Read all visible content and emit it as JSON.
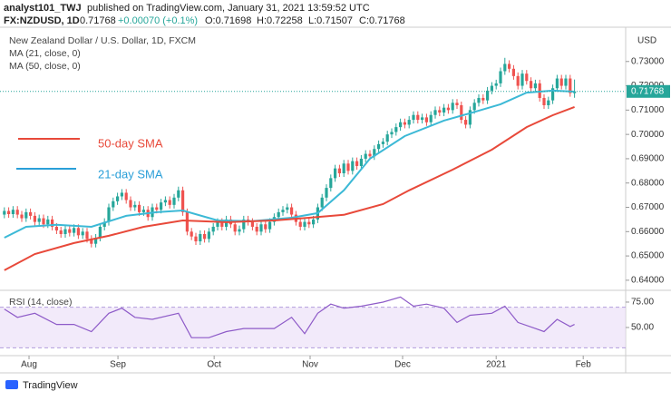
{
  "header": {
    "publisher": "analyst101_TWJ",
    "published": "published on TradingView.com, January 31, 2021 13:59:52 UTC",
    "symbol": "FX:NZDUSD, 1D",
    "quote": "0.71768",
    "change": "+0.00070 (+0.1%)",
    "ohlc": [
      "O:0.71698",
      "H:0.72258",
      "L:0.71507",
      "C:0.71768"
    ]
  },
  "footer": {
    "brand": "TradingView"
  },
  "chart_data": {
    "type": "candlestick",
    "title": "New Zealand Dollar / U.S. Dollar, 1D, FXCM",
    "currency": "USD",
    "up_color": "#26a69a",
    "down_color": "#ef5350",
    "candles": [
      [
        0.667,
        0.67,
        0.6655,
        0.6685
      ],
      [
        0.6685,
        0.67,
        0.6657,
        0.6672
      ],
      [
        0.6672,
        0.6705,
        0.6657,
        0.669
      ],
      [
        0.669,
        0.6705,
        0.6655,
        0.667
      ],
      [
        0.667,
        0.6685,
        0.664,
        0.6655
      ],
      [
        0.6655,
        0.6695,
        0.664,
        0.668
      ],
      [
        0.668,
        0.6695,
        0.665,
        0.6665
      ],
      [
        0.6665,
        0.668,
        0.6625,
        0.664
      ],
      [
        0.664,
        0.667,
        0.6625,
        0.6655
      ],
      [
        0.6655,
        0.667,
        0.6615,
        0.663
      ],
      [
        0.663,
        0.6665,
        0.6615,
        0.665
      ],
      [
        0.665,
        0.6665,
        0.6605,
        0.662
      ],
      [
        0.662,
        0.6635,
        0.659,
        0.6605
      ],
      [
        0.6605,
        0.662,
        0.6575,
        0.659
      ],
      [
        0.659,
        0.6625,
        0.6575,
        0.661
      ],
      [
        0.661,
        0.6625,
        0.658,
        0.6595
      ],
      [
        0.6595,
        0.663,
        0.658,
        0.6615
      ],
      [
        0.6615,
        0.663,
        0.657,
        0.6585
      ],
      [
        0.6585,
        0.6615,
        0.657,
        0.66
      ],
      [
        0.66,
        0.6615,
        0.6555,
        0.657
      ],
      [
        0.657,
        0.6585,
        0.6535,
        0.655
      ],
      [
        0.655,
        0.659,
        0.6535,
        0.6575
      ],
      [
        0.6575,
        0.6635,
        0.656,
        0.662
      ],
      [
        0.662,
        0.6655,
        0.6605,
        0.664
      ],
      [
        0.664,
        0.6715,
        0.6625,
        0.67
      ],
      [
        0.67,
        0.674,
        0.6685,
        0.6725
      ],
      [
        0.6725,
        0.676,
        0.671,
        0.6745
      ],
      [
        0.6745,
        0.6775,
        0.673,
        0.676
      ],
      [
        0.676,
        0.6775,
        0.6715,
        0.673
      ],
      [
        0.673,
        0.6745,
        0.6685,
        0.67
      ],
      [
        0.67,
        0.6725,
        0.6685,
        0.671
      ],
      [
        0.671,
        0.6725,
        0.6665,
        0.668
      ],
      [
        0.668,
        0.6705,
        0.6665,
        0.669
      ],
      [
        0.669,
        0.6705,
        0.6645,
        0.666
      ],
      [
        0.666,
        0.6715,
        0.6645,
        0.67
      ],
      [
        0.67,
        0.6715,
        0.6675,
        0.669
      ],
      [
        0.669,
        0.6735,
        0.6675,
        0.672
      ],
      [
        0.672,
        0.6745,
        0.6705,
        0.673
      ],
      [
        0.673,
        0.6745,
        0.6695,
        0.671
      ],
      [
        0.671,
        0.6755,
        0.6695,
        0.674
      ],
      [
        0.674,
        0.6785,
        0.6725,
        0.677
      ],
      [
        0.677,
        0.6785,
        0.6665,
        0.668
      ],
      [
        0.668,
        0.6695,
        0.6585,
        0.66
      ],
      [
        0.66,
        0.6615,
        0.6565,
        0.658
      ],
      [
        0.658,
        0.6595,
        0.6545,
        0.656
      ],
      [
        0.656,
        0.6605,
        0.6545,
        0.659
      ],
      [
        0.659,
        0.6605,
        0.6555,
        0.657
      ],
      [
        0.657,
        0.6615,
        0.6555,
        0.66
      ],
      [
        0.66,
        0.6635,
        0.6585,
        0.662
      ],
      [
        0.662,
        0.6655,
        0.6605,
        0.664
      ],
      [
        0.664,
        0.6655,
        0.6605,
        0.662
      ],
      [
        0.662,
        0.6665,
        0.6605,
        0.665
      ],
      [
        0.665,
        0.6665,
        0.6615,
        0.663
      ],
      [
        0.663,
        0.6645,
        0.6585,
        0.66
      ],
      [
        0.66,
        0.6625,
        0.6585,
        0.661
      ],
      [
        0.661,
        0.6665,
        0.6595,
        0.665
      ],
      [
        0.665,
        0.6665,
        0.6625,
        0.664
      ],
      [
        0.664,
        0.6655,
        0.6605,
        0.662
      ],
      [
        0.662,
        0.6635,
        0.6585,
        0.66
      ],
      [
        0.66,
        0.6645,
        0.6585,
        0.663
      ],
      [
        0.663,
        0.6645,
        0.6595,
        0.661
      ],
      [
        0.661,
        0.6655,
        0.6595,
        0.664
      ],
      [
        0.664,
        0.6675,
        0.6625,
        0.666
      ],
      [
        0.666,
        0.6695,
        0.6645,
        0.668
      ],
      [
        0.668,
        0.6705,
        0.6665,
        0.669
      ],
      [
        0.669,
        0.6715,
        0.6675,
        0.67
      ],
      [
        0.67,
        0.6715,
        0.6655,
        0.667
      ],
      [
        0.667,
        0.6685,
        0.6625,
        0.664
      ],
      [
        0.664,
        0.6655,
        0.6605,
        0.662
      ],
      [
        0.662,
        0.6655,
        0.6605,
        0.664
      ],
      [
        0.664,
        0.6655,
        0.6615,
        0.663
      ],
      [
        0.663,
        0.6665,
        0.6615,
        0.665
      ],
      [
        0.665,
        0.6715,
        0.6635,
        0.67
      ],
      [
        0.67,
        0.6755,
        0.6685,
        0.674
      ],
      [
        0.674,
        0.6795,
        0.6725,
        0.678
      ],
      [
        0.678,
        0.6835,
        0.6765,
        0.682
      ],
      [
        0.682,
        0.6875,
        0.6805,
        0.686
      ],
      [
        0.686,
        0.6875,
        0.6825,
        0.684
      ],
      [
        0.684,
        0.6895,
        0.6825,
        0.688
      ],
      [
        0.688,
        0.6895,
        0.6835,
        0.685
      ],
      [
        0.685,
        0.6905,
        0.6835,
        0.689
      ],
      [
        0.689,
        0.6905,
        0.6855,
        0.687
      ],
      [
        0.687,
        0.6915,
        0.6855,
        0.69
      ],
      [
        0.69,
        0.6935,
        0.6885,
        0.692
      ],
      [
        0.692,
        0.6935,
        0.6895,
        0.691
      ],
      [
        0.691,
        0.6955,
        0.6895,
        0.694
      ],
      [
        0.694,
        0.6975,
        0.6925,
        0.696
      ],
      [
        0.696,
        0.6985,
        0.6945,
        0.697
      ],
      [
        0.697,
        0.7015,
        0.6955,
        0.7
      ],
      [
        0.7,
        0.7025,
        0.6985,
        0.701
      ],
      [
        0.701,
        0.7045,
        0.6995,
        0.703
      ],
      [
        0.703,
        0.7065,
        0.7015,
        0.705
      ],
      [
        0.705,
        0.7065,
        0.7025,
        0.704
      ],
      [
        0.704,
        0.7075,
        0.7025,
        0.706
      ],
      [
        0.706,
        0.7095,
        0.7045,
        0.708
      ],
      [
        0.708,
        0.7095,
        0.7045,
        0.706
      ],
      [
        0.706,
        0.7085,
        0.7045,
        0.707
      ],
      [
        0.707,
        0.7085,
        0.7035,
        0.705
      ],
      [
        0.705,
        0.7095,
        0.7035,
        0.708
      ],
      [
        0.708,
        0.7115,
        0.7065,
        0.71
      ],
      [
        0.71,
        0.7115,
        0.7075,
        0.709
      ],
      [
        0.709,
        0.7125,
        0.7075,
        0.711
      ],
      [
        0.711,
        0.7125,
        0.7085,
        0.71
      ],
      [
        0.71,
        0.7145,
        0.7085,
        0.713
      ],
      [
        0.713,
        0.7145,
        0.7105,
        0.712
      ],
      [
        0.712,
        0.7135,
        0.7045,
        0.706
      ],
      [
        0.706,
        0.7075,
        0.7025,
        0.704
      ],
      [
        0.704,
        0.7115,
        0.7025,
        0.71
      ],
      [
        0.71,
        0.7145,
        0.7085,
        0.713
      ],
      [
        0.713,
        0.7165,
        0.7115,
        0.715
      ],
      [
        0.715,
        0.7165,
        0.7125,
        0.714
      ],
      [
        0.714,
        0.7195,
        0.7125,
        0.718
      ],
      [
        0.718,
        0.7215,
        0.7165,
        0.72
      ],
      [
        0.72,
        0.7225,
        0.7185,
        0.721
      ],
      [
        0.721,
        0.7275,
        0.7195,
        0.726
      ],
      [
        0.726,
        0.7315,
        0.7245,
        0.729
      ],
      [
        0.729,
        0.7305,
        0.7255,
        0.727
      ],
      [
        0.727,
        0.7285,
        0.7225,
        0.724
      ],
      [
        0.724,
        0.7255,
        0.7185,
        0.72
      ],
      [
        0.72,
        0.7265,
        0.7185,
        0.725
      ],
      [
        0.725,
        0.7265,
        0.7205,
        0.722
      ],
      [
        0.722,
        0.7235,
        0.7175,
        0.719
      ],
      [
        0.719,
        0.7225,
        0.7175,
        0.721
      ],
      [
        0.721,
        0.7225,
        0.7135,
        0.715
      ],
      [
        0.715,
        0.7165,
        0.7105,
        0.712
      ],
      [
        0.712,
        0.7155,
        0.7105,
        0.714
      ],
      [
        0.714,
        0.7205,
        0.7125,
        0.719
      ],
      [
        0.719,
        0.7245,
        0.7175,
        0.723
      ],
      [
        0.723,
        0.7245,
        0.7185,
        0.72
      ],
      [
        0.72,
        0.7245,
        0.7185,
        0.723
      ],
      [
        0.723,
        0.7245,
        0.7155,
        0.717
      ],
      [
        0.71698,
        0.72258,
        0.71507,
        0.71768
      ]
    ],
    "xlim": [
      -1,
      142.75
    ],
    "xticks": [
      {
        "value": 5.67,
        "label": "Aug"
      },
      {
        "value": 26.1,
        "label": "Sep"
      },
      {
        "value": 48.2,
        "label": "Oct"
      },
      {
        "value": 70.25,
        "label": "Nov"
      },
      {
        "value": 91.5,
        "label": "Dec"
      },
      {
        "value": 113,
        "label": "2021"
      },
      {
        "value": 133,
        "label": "Feb"
      }
    ],
    "ylim": [
      0.6366,
      0.7441
    ],
    "yticks": [
      {
        "value": 0.64,
        "label": "0.64000"
      },
      {
        "value": 0.65,
        "label": "0.65000"
      },
      {
        "value": 0.66,
        "label": "0.66000"
      },
      {
        "value": 0.67,
        "label": "0.67000"
      },
      {
        "value": 0.68,
        "label": "0.68000"
      },
      {
        "value": 0.69,
        "label": "0.69000"
      },
      {
        "value": 0.7,
        "label": "0.70000"
      },
      {
        "value": 0.71,
        "label": "0.71000"
      },
      {
        "value": 0.72,
        "label": "0.72000"
      },
      {
        "value": 0.73,
        "label": "0.73000"
      }
    ],
    "last_price": 0.71768,
    "last_price_color": "#26a69a",
    "series": [
      {
        "name": "MA (21, close, 0)",
        "color": "#3cb9d6",
        "x": [
          0,
          5,
          12,
          20,
          28,
          35,
          41,
          49,
          57,
          66,
          72,
          78,
          84,
          92,
          101,
          107,
          114,
          120,
          126,
          131
        ],
        "values": [
          0.6575,
          0.662,
          0.6628,
          0.662,
          0.6665,
          0.668,
          0.6687,
          0.6646,
          0.6643,
          0.6657,
          0.6676,
          0.677,
          0.69,
          0.6993,
          0.7057,
          0.7087,
          0.7124,
          0.7172,
          0.718,
          0.7176
        ]
      },
      {
        "name": "MA (50, close, 0)",
        "color": "#e8493a",
        "x": [
          0,
          7,
          16,
          24,
          32,
          41,
          51,
          62,
          70,
          78,
          87,
          93,
          103,
          112,
          120,
          126,
          131
        ],
        "values": [
          0.6441,
          0.6508,
          0.6553,
          0.6583,
          0.662,
          0.6646,
          0.6639,
          0.6646,
          0.6657,
          0.6669,
          0.6713,
          0.677,
          0.6855,
          0.6937,
          0.703,
          0.7079,
          0.7113
        ]
      }
    ],
    "annotations": [
      {
        "text": "50-day SMA",
        "color": "#e8493a"
      },
      {
        "text": "21-day SMA",
        "color": "#2a9fd8"
      }
    ],
    "rsi": {
      "name": "RSI (14, close)",
      "color": "#8e5bc8",
      "band_color": "#e9dcf7",
      "bands": [
        70,
        30
      ],
      "ylim": [
        22.3,
        84.8
      ],
      "yticks": [
        {
          "value": 75,
          "label": "75.00"
        },
        {
          "value": 50,
          "label": "50.00"
        }
      ],
      "x": [
        0,
        3,
        7,
        12,
        16,
        20,
        24,
        27,
        30,
        34,
        40,
        43,
        47,
        51,
        55,
        62,
        66,
        69,
        72,
        75,
        78,
        82,
        87,
        91,
        94,
        97,
        101,
        104,
        107,
        112,
        115,
        118,
        122,
        124,
        127,
        130,
        131
      ],
      "values": [
        68,
        60,
        64,
        53,
        53,
        46,
        64,
        69,
        60,
        58,
        64,
        40,
        40,
        46,
        49,
        49,
        60,
        44,
        64,
        73,
        69,
        71,
        75,
        80,
        71,
        73,
        69,
        55,
        62,
        64,
        71,
        55,
        49,
        46,
        58,
        51,
        53
      ]
    }
  }
}
